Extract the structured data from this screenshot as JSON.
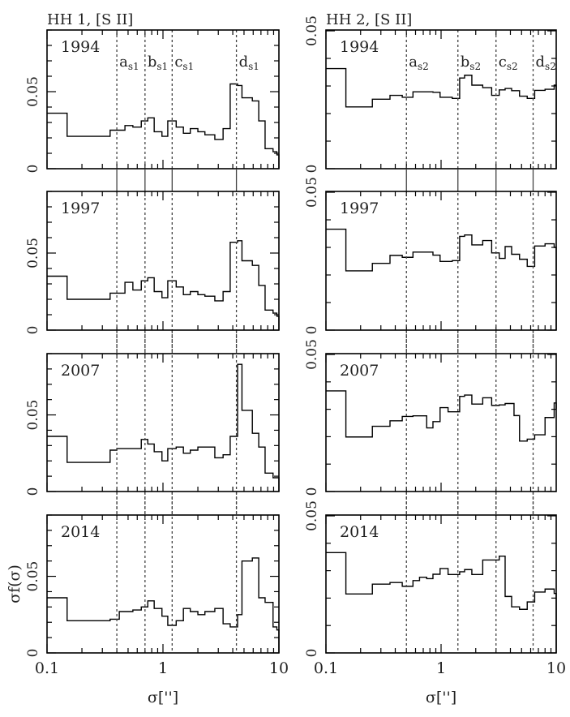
{
  "figure": {
    "ylabel": "σf(σ)",
    "xlabel": "σ['']"
  },
  "columns": [
    {
      "title": "HH 1, [S II]"
    },
    {
      "title": "HH 2, [S II]"
    }
  ],
  "chart_data": [
    {
      "type": "bar",
      "style": "step-histogram",
      "title": "HH 1, [S II]",
      "panel_label": "1994",
      "xlabel": "σ['']",
      "ylabel": "σf(σ)",
      "xscale": "log",
      "xlim": [
        0.1,
        10
      ],
      "ylim": [
        0,
        0.09
      ],
      "xticks": [
        "0.1",
        "1",
        "10"
      ],
      "yticks": [
        "0",
        "0.05"
      ],
      "markers": [
        {
          "label": "a",
          "sub": "s1",
          "x": 0.4
        },
        {
          "label": "b",
          "sub": "s1",
          "x": 0.7
        },
        {
          "label": "c",
          "sub": "s1",
          "x": 1.2
        },
        {
          "label": "d",
          "sub": "s1",
          "x": 4.3
        }
      ],
      "edges": [
        0.1,
        0.149,
        0.253,
        0.35,
        0.47,
        0.55,
        0.65,
        0.74,
        0.84,
        0.98,
        1.1,
        1.3,
        1.5,
        1.72,
        2.0,
        2.3,
        2.8,
        3.3,
        3.8,
        4.4,
        4.8,
        5.9,
        6.7,
        7.6,
        8.9,
        9.6,
        10
      ],
      "values": [
        0.036,
        0.021,
        0.021,
        0.025,
        0.028,
        0.027,
        0.031,
        0.033,
        0.024,
        0.021,
        0.031,
        0.027,
        0.023,
        0.026,
        0.024,
        0.022,
        0.019,
        0.026,
        0.055,
        0.054,
        0.046,
        0.044,
        0.031,
        0.013,
        0.011,
        0.009
      ]
    },
    {
      "type": "bar",
      "style": "step-histogram",
      "title": "HH 2, [S II]",
      "panel_label": "1994",
      "xlabel": "σ['']",
      "ylabel": "σf(σ)",
      "xscale": "log",
      "xlim": [
        0.1,
        10
      ],
      "ylim": [
        0,
        0.0503
      ],
      "xticks": [
        "0.1",
        "1",
        "10"
      ],
      "yticks": [
        "0",
        "0.05"
      ],
      "markers": [
        {
          "label": "a",
          "sub": "s2",
          "x": 0.5
        },
        {
          "label": "b",
          "sub": "s2",
          "x": 1.4
        },
        {
          "label": "c",
          "sub": "s2",
          "x": 3.0
        },
        {
          "label": "d",
          "sub": "s2",
          "x": 6.3
        }
      ],
      "edges": [
        0.1,
        0.149,
        0.253,
        0.36,
        0.46,
        0.57,
        0.85,
        0.98,
        1.25,
        1.45,
        1.6,
        1.85,
        2.3,
        2.75,
        3.2,
        3.6,
        4.1,
        4.8,
        5.6,
        6.5,
        8.0,
        9.6,
        10
      ],
      "values": [
        0.0363,
        0.0224,
        0.0252,
        0.0266,
        0.0259,
        0.0279,
        0.0277,
        0.0259,
        0.0255,
        0.0329,
        0.0339,
        0.0303,
        0.0294,
        0.0266,
        0.0286,
        0.0291,
        0.0283,
        0.0263,
        0.0255,
        0.0284,
        0.0288,
        0.0303
      ]
    },
    {
      "type": "bar",
      "style": "step-histogram",
      "title": "HH 1, [S II]",
      "panel_label": "1997",
      "xscale": "log",
      "xlim": [
        0.1,
        10
      ],
      "ylim": [
        0,
        0.09
      ],
      "markers": [
        {
          "x": 0.4
        },
        {
          "x": 0.7
        },
        {
          "x": 1.2
        },
        {
          "x": 4.3
        }
      ],
      "edges": [
        0.1,
        0.149,
        0.253,
        0.35,
        0.47,
        0.55,
        0.65,
        0.74,
        0.84,
        0.98,
        1.1,
        1.3,
        1.5,
        1.72,
        2.0,
        2.3,
        2.8,
        3.3,
        3.8,
        4.4,
        4.8,
        5.9,
        6.7,
        7.6,
        8.9,
        9.6,
        10
      ],
      "values": [
        0.035,
        0.02,
        0.02,
        0.024,
        0.031,
        0.026,
        0.032,
        0.034,
        0.025,
        0.021,
        0.032,
        0.028,
        0.023,
        0.025,
        0.023,
        0.022,
        0.019,
        0.025,
        0.057,
        0.058,
        0.045,
        0.042,
        0.029,
        0.013,
        0.011,
        0.009
      ]
    },
    {
      "type": "bar",
      "style": "step-histogram",
      "title": "HH 2, [S II]",
      "panel_label": "1997",
      "xscale": "log",
      "xlim": [
        0.1,
        10
      ],
      "ylim": [
        0,
        0.0503
      ],
      "markers": [
        {
          "x": 0.5
        },
        {
          "x": 1.4
        },
        {
          "x": 3.0
        },
        {
          "x": 6.3
        }
      ],
      "edges": [
        0.1,
        0.149,
        0.253,
        0.36,
        0.46,
        0.57,
        0.85,
        0.98,
        1.25,
        1.45,
        1.6,
        1.85,
        2.3,
        2.75,
        3.2,
        3.6,
        4.1,
        4.8,
        5.6,
        6.5,
        8.0,
        9.6,
        10
      ],
      "values": [
        0.0366,
        0.0215,
        0.0242,
        0.0271,
        0.0264,
        0.0283,
        0.0272,
        0.0249,
        0.0252,
        0.034,
        0.0345,
        0.0309,
        0.0325,
        0.028,
        0.026,
        0.0303,
        0.0275,
        0.0257,
        0.0231,
        0.0305,
        0.0313,
        0.03
      ]
    },
    {
      "type": "bar",
      "style": "step-histogram",
      "title": "HH 1, [S II]",
      "panel_label": "2007",
      "xscale": "log",
      "xlim": [
        0.1,
        10
      ],
      "ylim": [
        0,
        0.09
      ],
      "markers": [
        {
          "x": 0.4
        },
        {
          "x": 0.7
        },
        {
          "x": 1.2
        },
        {
          "x": 4.3
        }
      ],
      "edges": [
        0.1,
        0.149,
        0.253,
        0.35,
        0.4,
        0.55,
        0.65,
        0.74,
        0.84,
        0.98,
        1.1,
        1.3,
        1.5,
        1.72,
        2.0,
        2.3,
        2.8,
        3.3,
        3.8,
        4.4,
        4.8,
        5.9,
        6.7,
        7.6,
        8.9,
        9.6,
        10
      ],
      "values": [
        0.036,
        0.019,
        0.019,
        0.027,
        0.028,
        0.028,
        0.034,
        0.031,
        0.026,
        0.02,
        0.028,
        0.029,
        0.025,
        0.027,
        0.029,
        0.029,
        0.022,
        0.024,
        0.036,
        0.083,
        0.053,
        0.038,
        0.029,
        0.012,
        0.009,
        0.009
      ]
    },
    {
      "type": "bar",
      "style": "step-histogram",
      "title": "HH 2, [S II]",
      "panel_label": "2007",
      "xscale": "log",
      "xlim": [
        0.1,
        10
      ],
      "ylim": [
        0,
        0.0503
      ],
      "markers": [
        {
          "x": 0.5
        },
        {
          "x": 1.4
        },
        {
          "x": 3.0
        },
        {
          "x": 6.3
        }
      ],
      "edges": [
        0.1,
        0.149,
        0.253,
        0.36,
        0.46,
        0.57,
        0.75,
        0.85,
        0.98,
        1.15,
        1.45,
        1.6,
        1.85,
        2.3,
        2.75,
        3.2,
        3.6,
        4.3,
        4.8,
        5.6,
        6.5,
        8.0,
        9.6,
        10
      ],
      "values": [
        0.0367,
        0.0199,
        0.0238,
        0.0258,
        0.0274,
        0.0276,
        0.0232,
        0.0255,
        0.0306,
        0.0291,
        0.0347,
        0.0352,
        0.0319,
        0.0342,
        0.0314,
        0.0316,
        0.0321,
        0.0277,
        0.0184,
        0.0191,
        0.0207,
        0.027,
        0.0323,
        0.0302,
        0.0252
      ]
    },
    {
      "type": "bar",
      "style": "step-histogram",
      "title": "HH 1, [S II]",
      "panel_label": "2014",
      "xlabel": "σ['']",
      "ylabel": "σf(σ)",
      "xscale": "log",
      "xlim": [
        0.1,
        10
      ],
      "ylim": [
        0,
        0.09
      ],
      "xticks": [
        "0.1",
        "1",
        "10"
      ],
      "markers": [
        {
          "x": 0.4
        },
        {
          "x": 0.7
        },
        {
          "x": 1.2
        },
        {
          "x": 4.3
        }
      ],
      "edges": [
        0.1,
        0.149,
        0.253,
        0.35,
        0.42,
        0.55,
        0.65,
        0.74,
        0.84,
        0.98,
        1.1,
        1.3,
        1.5,
        1.72,
        2.0,
        2.3,
        2.8,
        3.3,
        3.8,
        4.4,
        4.8,
        5.9,
        6.7,
        7.6,
        8.9,
        9.6,
        10
      ],
      "values": [
        0.036,
        0.021,
        0.021,
        0.022,
        0.027,
        0.028,
        0.03,
        0.034,
        0.029,
        0.024,
        0.018,
        0.021,
        0.029,
        0.027,
        0.025,
        0.027,
        0.029,
        0.019,
        0.017,
        0.025,
        0.06,
        0.062,
        0.036,
        0.033,
        0.017,
        0.015
      ]
    },
    {
      "type": "bar",
      "style": "step-histogram",
      "title": "HH 2, [S II]",
      "panel_label": "2014",
      "xlabel": "σ['']",
      "xscale": "log",
      "xlim": [
        0.1,
        10
      ],
      "ylim": [
        0,
        0.0503
      ],
      "xticks": [
        "0.1",
        "1",
        "10"
      ],
      "markers": [
        {
          "x": 0.5
        },
        {
          "x": 1.4
        },
        {
          "x": 3.0
        },
        {
          "x": 6.3
        }
      ],
      "edges": [
        0.1,
        0.149,
        0.253,
        0.36,
        0.46,
        0.57,
        0.65,
        0.75,
        0.85,
        0.98,
        1.15,
        1.45,
        1.6,
        1.85,
        2.3,
        3.2,
        3.6,
        4.1,
        4.8,
        5.6,
        6.5,
        8.0,
        9.6,
        10
      ],
      "values": [
        0.0366,
        0.0215,
        0.0251,
        0.0257,
        0.0243,
        0.0264,
        0.0276,
        0.0271,
        0.0287,
        0.0308,
        0.0286,
        0.0296,
        0.0304,
        0.0286,
        0.0339,
        0.0353,
        0.0206,
        0.0168,
        0.0159,
        0.0186,
        0.0222,
        0.0233,
        0.0217
      ]
    }
  ]
}
